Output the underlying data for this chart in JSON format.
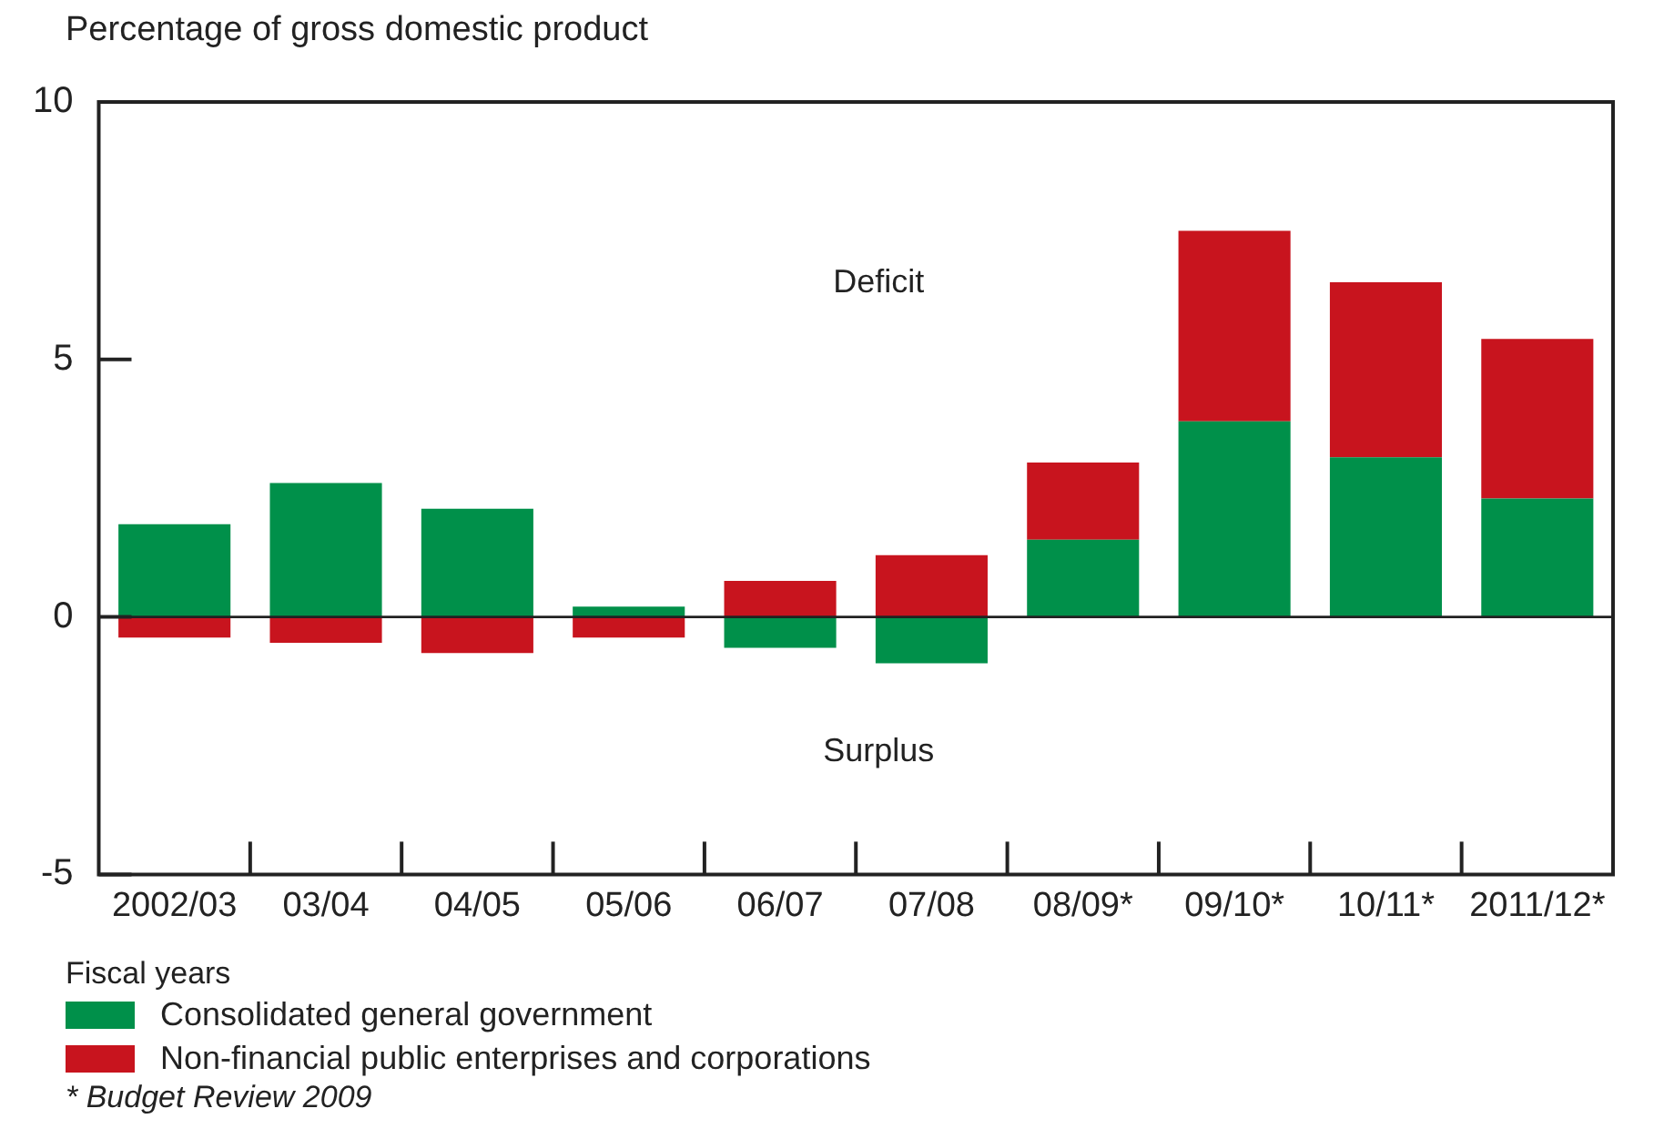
{
  "chart_data": {
    "type": "bar",
    "stacked": true,
    "ylabel": "Percentage of gross domestic product",
    "xlabel": "Fiscal years",
    "categories": [
      "2002/03",
      "03/04",
      "04/05",
      "05/06",
      "06/07",
      "07/08",
      "08/09*",
      "09/10*",
      "10/11*",
      "2011/12*"
    ],
    "series": [
      {
        "name": "Consolidated general government",
        "color": "#00904a",
        "values": [
          1.8,
          2.6,
          2.1,
          0.2,
          -0.6,
          -0.9,
          1.5,
          3.8,
          3.1,
          2.3
        ]
      },
      {
        "name": "Non-financial public enterprises and corporations",
        "color": "#c8141e",
        "values": [
          -0.4,
          -0.5,
          -0.7,
          -0.4,
          0.7,
          1.2,
          1.5,
          3.7,
          3.4,
          3.1
        ]
      }
    ],
    "ylim": [
      -5,
      10
    ],
    "yticks": [
      -5,
      0,
      5,
      10
    ],
    "legend": "bottom left",
    "annotations": [
      "Deficit",
      "Surplus",
      "* Budget Review 2009"
    ]
  }
}
